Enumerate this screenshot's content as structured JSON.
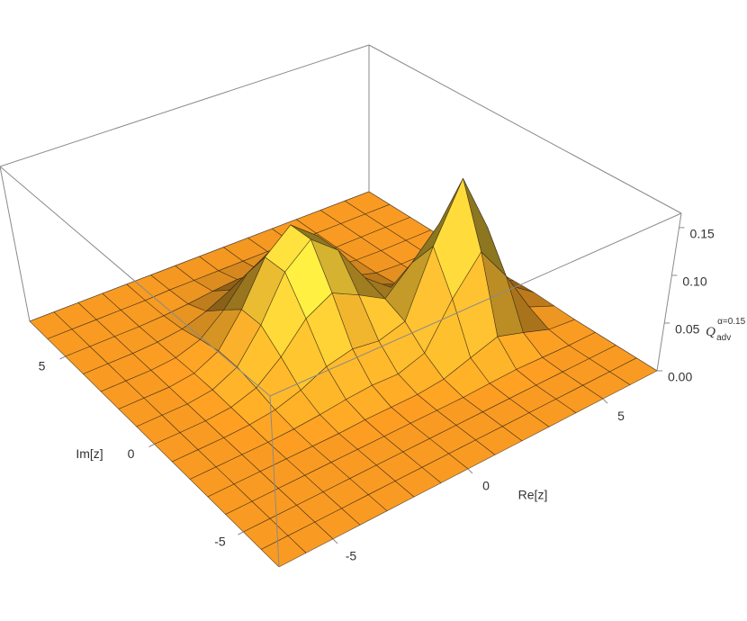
{
  "chart_data": {
    "type": "surface",
    "xlabel": "Re[z]",
    "ylabel": "Im[z]",
    "zlabel": {
      "text": "Q",
      "subscript": "adv",
      "superscript": "α=0.15"
    },
    "x": [
      -7,
      -6,
      -5,
      -4,
      -3,
      -2,
      -1,
      0,
      1,
      2,
      3,
      4,
      5,
      6,
      7
    ],
    "y": [
      -7,
      -6,
      -5,
      -4,
      -3,
      -2,
      -1,
      0,
      1,
      2,
      3,
      4,
      5,
      6,
      7
    ],
    "z": [
      [
        0,
        0,
        0,
        0,
        0,
        0,
        0,
        0,
        0,
        0,
        0,
        0,
        0,
        0,
        0
      ],
      [
        0,
        0,
        0,
        0,
        0,
        0,
        0,
        0,
        0,
        0,
        0,
        0,
        0,
        0,
        0
      ],
      [
        0,
        0,
        0,
        0,
        0,
        0,
        0,
        0,
        0,
        0,
        0,
        0,
        0,
        0,
        0
      ],
      [
        0,
        0,
        0,
        0,
        0,
        0,
        0,
        0,
        0,
        0,
        0.001,
        0.002,
        0.001,
        0,
        0
      ],
      [
        0,
        0,
        0,
        0,
        0,
        0,
        0.001,
        0.001,
        0.001,
        0.004,
        0.013,
        0.022,
        0.013,
        0.003,
        0
      ],
      [
        0,
        0,
        0,
        0,
        0.001,
        0.003,
        0.006,
        0.008,
        0.007,
        0.016,
        0.06,
        0.097,
        0.059,
        0.013,
        0.001
      ],
      [
        0,
        0,
        0,
        0.001,
        0.004,
        0.012,
        0.024,
        0.03,
        0.026,
        0.034,
        0.101,
        0.161,
        0.097,
        0.022,
        0.002
      ],
      [
        0,
        0,
        0,
        0.002,
        0.01,
        0.03,
        0.058,
        0.073,
        0.059,
        0.043,
        0.069,
        0.099,
        0.059,
        0.013,
        0.001
      ],
      [
        0,
        0,
        0,
        0.003,
        0.015,
        0.047,
        0.091,
        0.114,
        0.091,
        0.05,
        0.028,
        0.025,
        0.013,
        0.003,
        0
      ],
      [
        0,
        0,
        0,
        0.003,
        0.015,
        0.047,
        0.091,
        0.114,
        0.091,
        0.047,
        0.016,
        0.005,
        0.001,
        0,
        0
      ],
      [
        0,
        0,
        0,
        0.002,
        0.01,
        0.03,
        0.058,
        0.073,
        0.058,
        0.03,
        0.01,
        0.002,
        0,
        0,
        0
      ],
      [
        0,
        0,
        0,
        0.001,
        0.004,
        0.012,
        0.024,
        0.03,
        0.024,
        0.012,
        0.004,
        0.001,
        0,
        0,
        0
      ],
      [
        0,
        0,
        0,
        0,
        0.001,
        0.003,
        0.006,
        0.008,
        0.006,
        0.003,
        0.001,
        0,
        0,
        0,
        0
      ],
      [
        0,
        0,
        0,
        0,
        0,
        0.001,
        0.001,
        0.001,
        0.001,
        0.001,
        0,
        0,
        0,
        0,
        0
      ],
      [
        0,
        0,
        0,
        0,
        0,
        0,
        0,
        0,
        0,
        0,
        0,
        0,
        0,
        0,
        0
      ]
    ],
    "xlim": [
      -7,
      7
    ],
    "ylim": [
      -7,
      7
    ],
    "zlim": [
      0,
      0.165
    ],
    "xticks": [
      -5,
      0,
      5
    ],
    "yticks": [
      -5,
      0,
      5
    ],
    "zticks": [
      {
        "value": 0,
        "label": "0.00"
      },
      0.05,
      {
        "value": 0.1,
        "label": "0.10"
      },
      0.15
    ],
    "color": "#f99b22",
    "mesh": true,
    "box": true
  }
}
